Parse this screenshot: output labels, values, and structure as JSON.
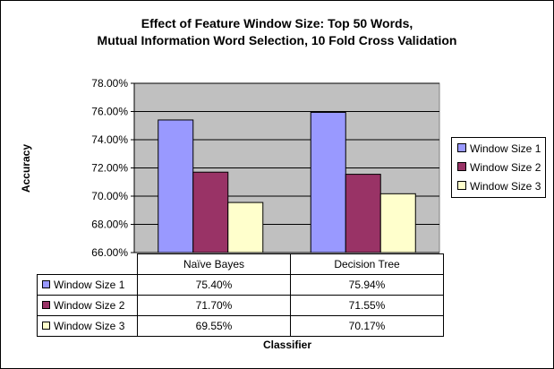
{
  "chart_data": {
    "type": "bar",
    "title_line1": "Effect of Feature Window Size: Top 50 Words,",
    "title_line2": "Mutual Information Word Selection, 10 Fold Cross Validation",
    "xlabel": "Classifier",
    "ylabel": "Accuracy",
    "categories": [
      "Naïve Bayes",
      "Decision Tree"
    ],
    "ylim": [
      66.0,
      78.0
    ],
    "y_ticks": [
      "66.00%",
      "68.00%",
      "70.00%",
      "72.00%",
      "74.00%",
      "76.00%",
      "78.00%"
    ],
    "y_tick_values": [
      66,
      68,
      70,
      72,
      74,
      76,
      78
    ],
    "series": [
      {
        "name": "Window Size 1",
        "color": "#9999ff",
        "values": [
          75.4,
          75.94
        ],
        "labels": [
          "75.40%",
          "75.94%"
        ]
      },
      {
        "name": "Window Size 2",
        "color": "#993366",
        "values": [
          71.7,
          71.55
        ],
        "labels": [
          "71.70%",
          "71.55%"
        ]
      },
      {
        "name": "Window Size 3",
        "color": "#ffffcc",
        "values": [
          69.55,
          70.17
        ],
        "labels": [
          "69.55%",
          "70.17%"
        ]
      }
    ],
    "plot_background": "#c0c0c0",
    "grid": true,
    "legend_position": "right",
    "data_table": true
  }
}
